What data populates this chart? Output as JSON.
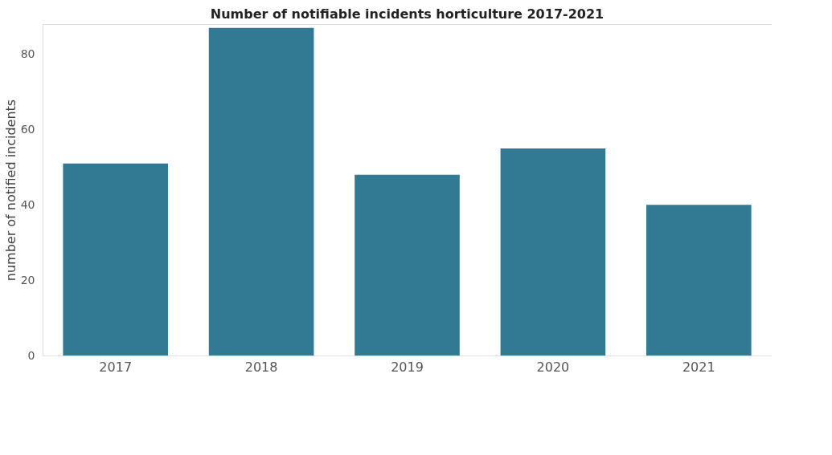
{
  "chart_data": {
    "type": "bar",
    "title": "Number of notifiable incidents horticulture 2017-2021",
    "ylabel": "number of notified incidents",
    "categories": [
      "2017",
      "2018",
      "2019",
      "2020",
      "2021"
    ],
    "values": [
      51,
      87,
      48,
      55,
      40
    ],
    "color": "#327a93",
    "ylim": [
      0,
      88
    ],
    "yticks": [
      0,
      20,
      40,
      60,
      80
    ],
    "grid": false
  }
}
